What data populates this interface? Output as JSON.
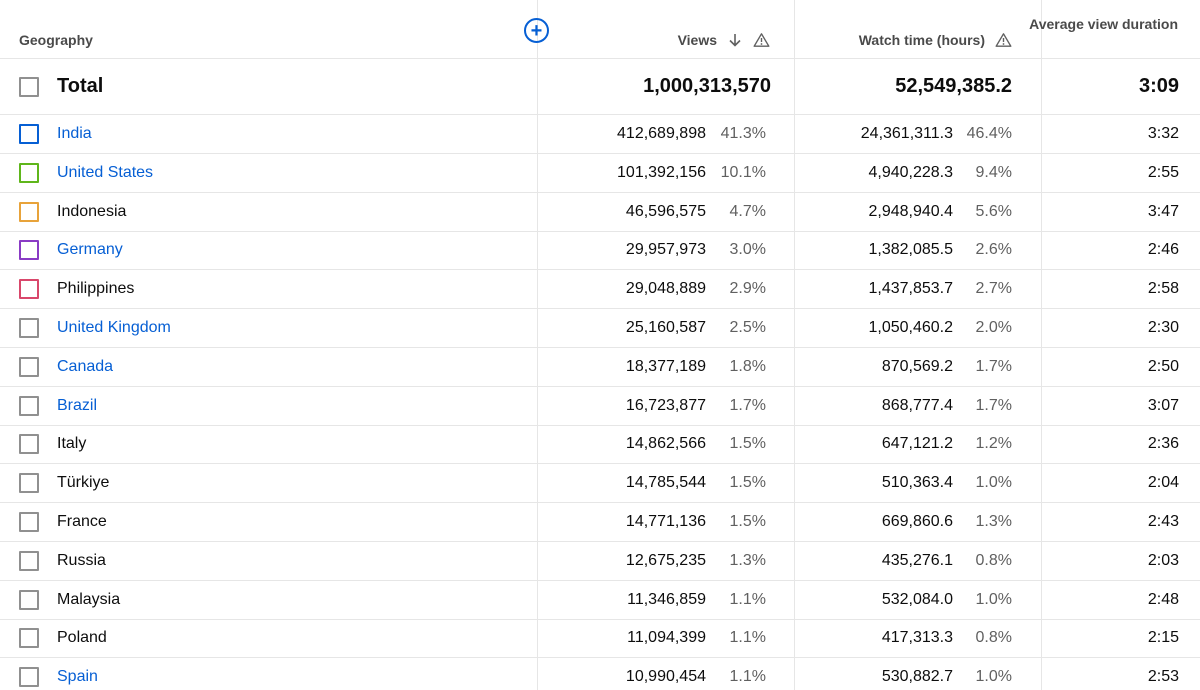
{
  "headers": {
    "geography": "Geography",
    "views": "Views",
    "watch_time": "Watch time (hours)",
    "avg_view_duration": "Average view duration"
  },
  "icons": {
    "add": "add-circle-icon",
    "sort": "arrow-down-icon",
    "warning": "warning-icon"
  },
  "total": {
    "label": "Total",
    "views": "1,000,313,570",
    "watch_time": "52,549,385.2",
    "avg_view_duration": "3:09"
  },
  "rows": [
    {
      "geography": "India",
      "link": true,
      "color": "#065fd4",
      "views": "412,689,898",
      "views_pct": "41.3%",
      "watch_time": "24,361,311.3",
      "watch_pct": "46.4%",
      "avg_view_duration": "3:32"
    },
    {
      "geography": "United States",
      "link": true,
      "color": "#5fb61b",
      "views": "101,392,156",
      "views_pct": "10.1%",
      "watch_time": "4,940,228.3",
      "watch_pct": "9.4%",
      "avg_view_duration": "2:55"
    },
    {
      "geography": "Indonesia",
      "link": false,
      "color": "#e8a33a",
      "views": "46,596,575",
      "views_pct": "4.7%",
      "watch_time": "2,948,940.4",
      "watch_pct": "5.6%",
      "avg_view_duration": "3:47"
    },
    {
      "geography": "Germany",
      "link": true,
      "color": "#8a3bc5",
      "views": "29,957,973",
      "views_pct": "3.0%",
      "watch_time": "1,382,085.5",
      "watch_pct": "2.6%",
      "avg_view_duration": "2:46"
    },
    {
      "geography": "Philippines",
      "link": false,
      "color": "#d9476b",
      "views": "29,048,889",
      "views_pct": "2.9%",
      "watch_time": "1,437,853.7",
      "watch_pct": "2.7%",
      "avg_view_duration": "2:58"
    },
    {
      "geography": "United Kingdom",
      "link": true,
      "color": null,
      "views": "25,160,587",
      "views_pct": "2.5%",
      "watch_time": "1,050,460.2",
      "watch_pct": "2.0%",
      "avg_view_duration": "2:30"
    },
    {
      "geography": "Canada",
      "link": true,
      "color": null,
      "views": "18,377,189",
      "views_pct": "1.8%",
      "watch_time": "870,569.2",
      "watch_pct": "1.7%",
      "avg_view_duration": "2:50"
    },
    {
      "geography": "Brazil",
      "link": true,
      "color": null,
      "views": "16,723,877",
      "views_pct": "1.7%",
      "watch_time": "868,777.4",
      "watch_pct": "1.7%",
      "avg_view_duration": "3:07"
    },
    {
      "geography": "Italy",
      "link": false,
      "color": null,
      "views": "14,862,566",
      "views_pct": "1.5%",
      "watch_time": "647,121.2",
      "watch_pct": "1.2%",
      "avg_view_duration": "2:36"
    },
    {
      "geography": "Türkiye",
      "link": false,
      "color": null,
      "views": "14,785,544",
      "views_pct": "1.5%",
      "watch_time": "510,363.4",
      "watch_pct": "1.0%",
      "avg_view_duration": "2:04"
    },
    {
      "geography": "France",
      "link": false,
      "color": null,
      "views": "14,771,136",
      "views_pct": "1.5%",
      "watch_time": "669,860.6",
      "watch_pct": "1.3%",
      "avg_view_duration": "2:43"
    },
    {
      "geography": "Russia",
      "link": false,
      "color": null,
      "views": "12,675,235",
      "views_pct": "1.3%",
      "watch_time": "435,276.1",
      "watch_pct": "0.8%",
      "avg_view_duration": "2:03"
    },
    {
      "geography": "Malaysia",
      "link": false,
      "color": null,
      "views": "11,346,859",
      "views_pct": "1.1%",
      "watch_time": "532,084.0",
      "watch_pct": "1.0%",
      "avg_view_duration": "2:48"
    },
    {
      "geography": "Poland",
      "link": false,
      "color": null,
      "views": "11,094,399",
      "views_pct": "1.1%",
      "watch_time": "417,313.3",
      "watch_pct": "0.8%",
      "avg_view_duration": "2:15"
    },
    {
      "geography": "Spain",
      "link": true,
      "color": null,
      "views": "10,990,454",
      "views_pct": "1.1%",
      "watch_time": "530,882.7",
      "watch_pct": "1.0%",
      "avg_view_duration": "2:53"
    }
  ]
}
